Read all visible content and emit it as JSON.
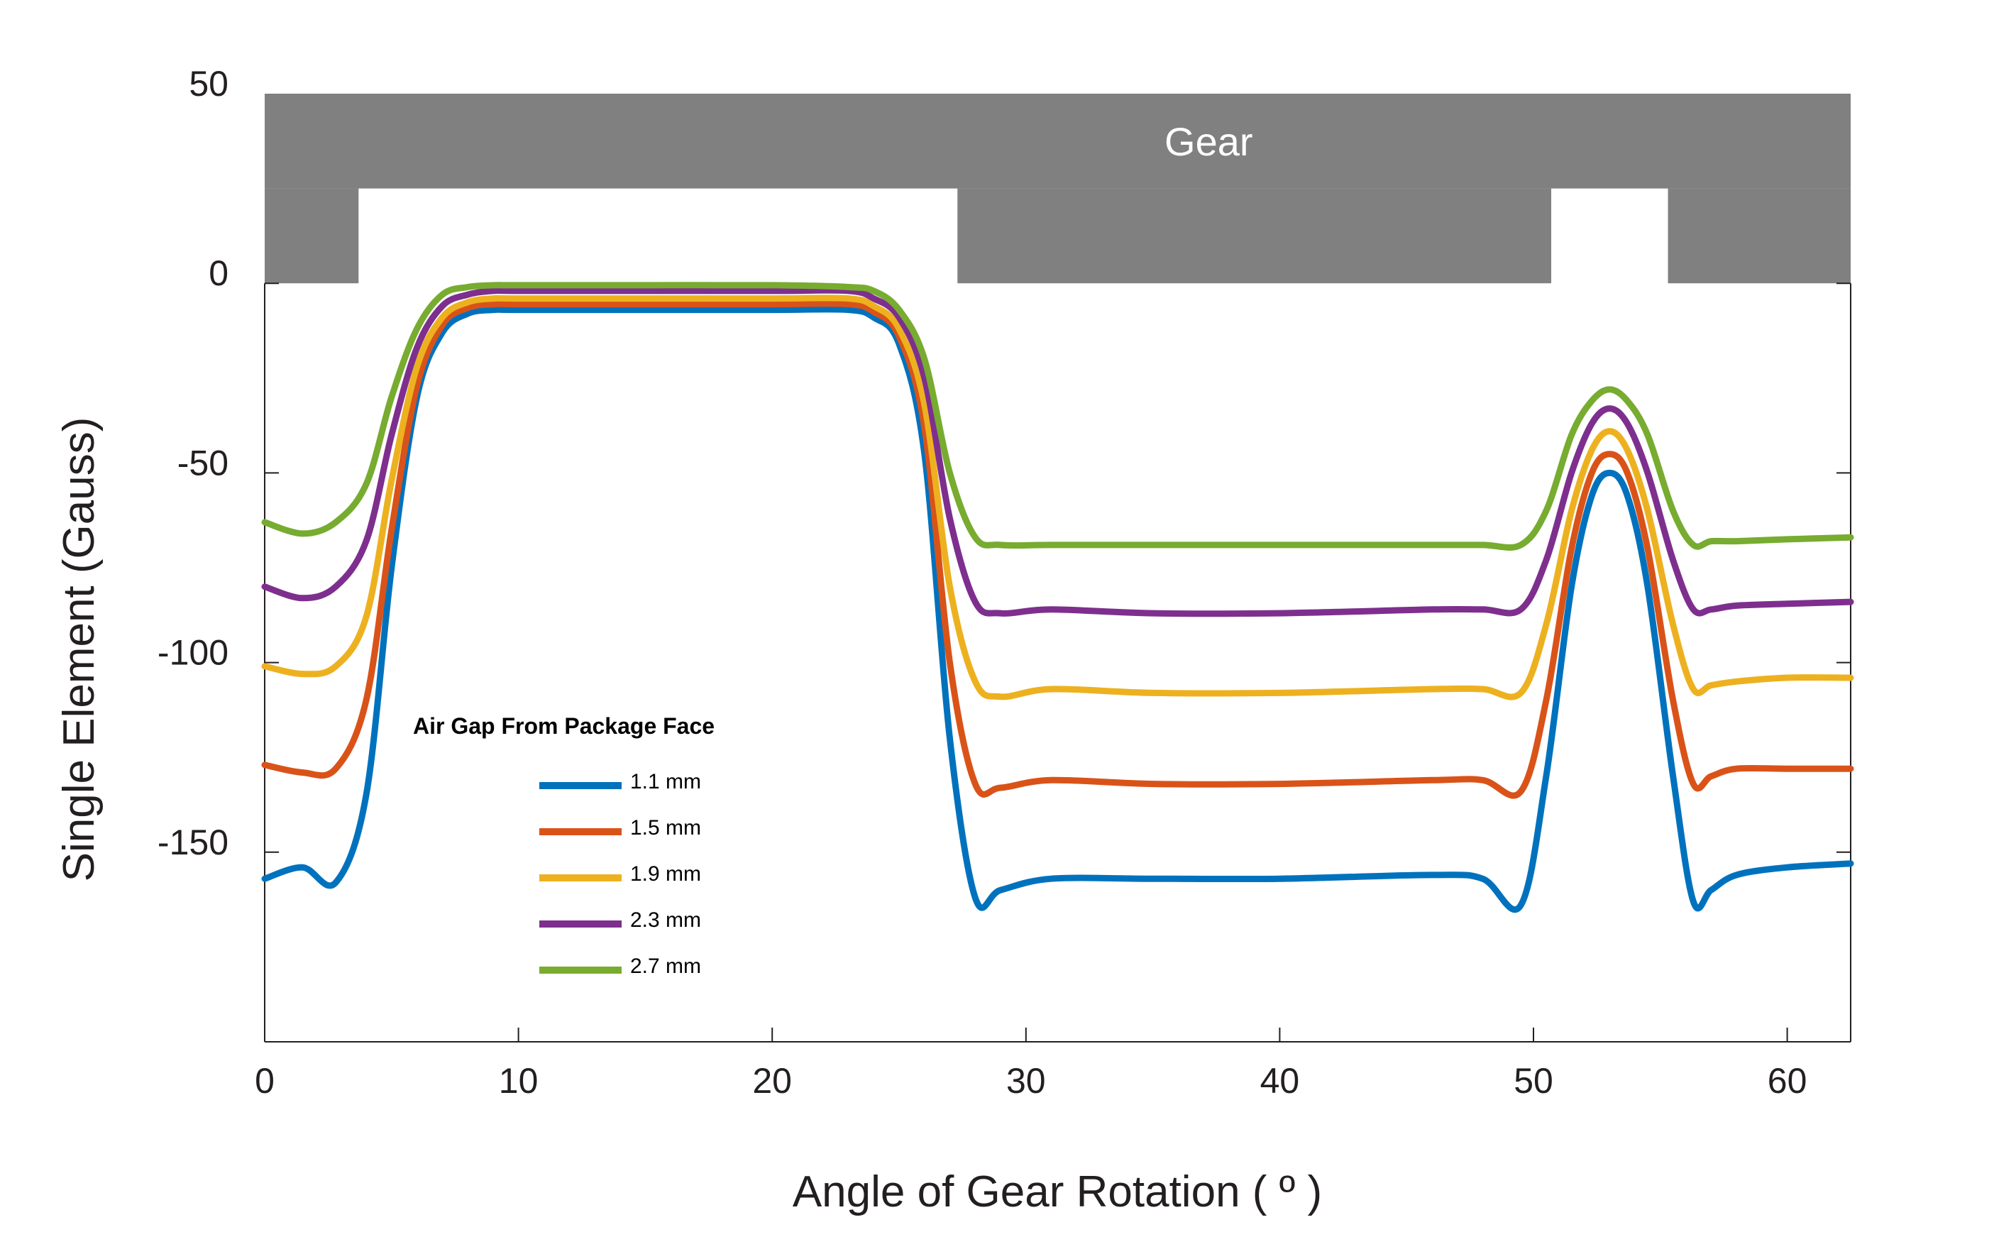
{
  "chart_data": {
    "type": "line",
    "xlabel": "Angle of Gear Rotation ( º )",
    "ylabel": "Single Element (Gauss)",
    "xlim": [
      0,
      62.5
    ],
    "ylim": [
      -200,
      50
    ],
    "xticks": [
      0,
      10,
      20,
      30,
      40,
      50,
      60
    ],
    "yticks": [
      50,
      0,
      -50,
      -100,
      -150
    ],
    "grid": false,
    "legend_title": "Air Gap From Package Face",
    "legend_position": "lower-left",
    "gear_profile": {
      "label": "Gear",
      "color": "#808080",
      "band": [
        0,
        50
      ],
      "tooth_top": 25,
      "teeth": [
        [
          0,
          3.7
        ],
        [
          27.3,
          50.7
        ],
        [
          55.3,
          62.5
        ]
      ]
    },
    "x": [
      0,
      1.5,
      2.8,
      4,
      5,
      6,
      7,
      8,
      9,
      10,
      15,
      20,
      23,
      24,
      25,
      26,
      27,
      28,
      29,
      31,
      35,
      40,
      46,
      48,
      49.5,
      50.5,
      51.5,
      52.3,
      53,
      53.7,
      54.5,
      55.5,
      56.3,
      57,
      58,
      60,
      62.5
    ],
    "series": [
      {
        "name": "1.1 mm",
        "color": "#0072BD",
        "values": [
          -157,
          -154,
          -158,
          -135,
          -75,
          -30,
          -13,
          -8,
          -7,
          -7,
          -7,
          -7,
          -7,
          -9,
          -16,
          -45,
          -120,
          -162,
          -160,
          -157,
          -157,
          -157,
          -156,
          -157,
          -164,
          -130,
          -80,
          -56,
          -50,
          -56,
          -80,
          -130,
          -163,
          -160,
          -156,
          -154,
          -153
        ]
      },
      {
        "name": "1.5 mm",
        "color": "#D95319",
        "values": [
          -127,
          -129,
          -128,
          -110,
          -65,
          -27,
          -11,
          -6.5,
          -5.5,
          -5.5,
          -5.5,
          -5.5,
          -5.5,
          -7.5,
          -14,
          -38,
          -100,
          -132,
          -133,
          -131,
          -132,
          -132,
          -131,
          -131,
          -134,
          -110,
          -70,
          -50,
          -45,
          -50,
          -70,
          -110,
          -132,
          -130,
          -128,
          -128,
          -128
        ]
      },
      {
        "name": "1.9 mm",
        "color": "#EDB120",
        "values": [
          -101,
          -103,
          -101,
          -88,
          -52,
          -22,
          -9,
          -5,
          -4,
          -4,
          -4,
          -4,
          -4,
          -6,
          -12,
          -32,
          -80,
          -105,
          -109,
          -107,
          -108,
          -108,
          -107,
          -107,
          -108,
          -90,
          -60,
          -44,
          -39,
          -44,
          -60,
          -90,
          -107,
          -106,
          -105,
          -104,
          -104
        ]
      },
      {
        "name": "2.3 mm",
        "color": "#7E2F8E",
        "values": [
          -80,
          -83,
          -80,
          -68,
          -40,
          -17,
          -6,
          -3,
          -2,
          -2,
          -2,
          -2,
          -2,
          -4,
          -9,
          -25,
          -62,
          -84,
          -87,
          -86,
          -87,
          -87,
          -86,
          -86,
          -86,
          -73,
          -50,
          -37,
          -33,
          -37,
          -50,
          -73,
          -86,
          -86,
          -85,
          -84.5,
          -84
        ]
      },
      {
        "name": "2.7 mm",
        "color": "#77AC30",
        "values": [
          -63,
          -66,
          -63,
          -53,
          -30,
          -12,
          -3,
          -1,
          -0.5,
          -0.5,
          -0.5,
          -0.5,
          -1,
          -2,
          -7,
          -20,
          -50,
          -67,
          -69,
          -69,
          -69,
          -69,
          -69,
          -69,
          -69,
          -60,
          -40,
          -31,
          -28,
          -31,
          -40,
          -60,
          -69,
          -68,
          -68,
          -67.5,
          -67
        ]
      }
    ]
  }
}
